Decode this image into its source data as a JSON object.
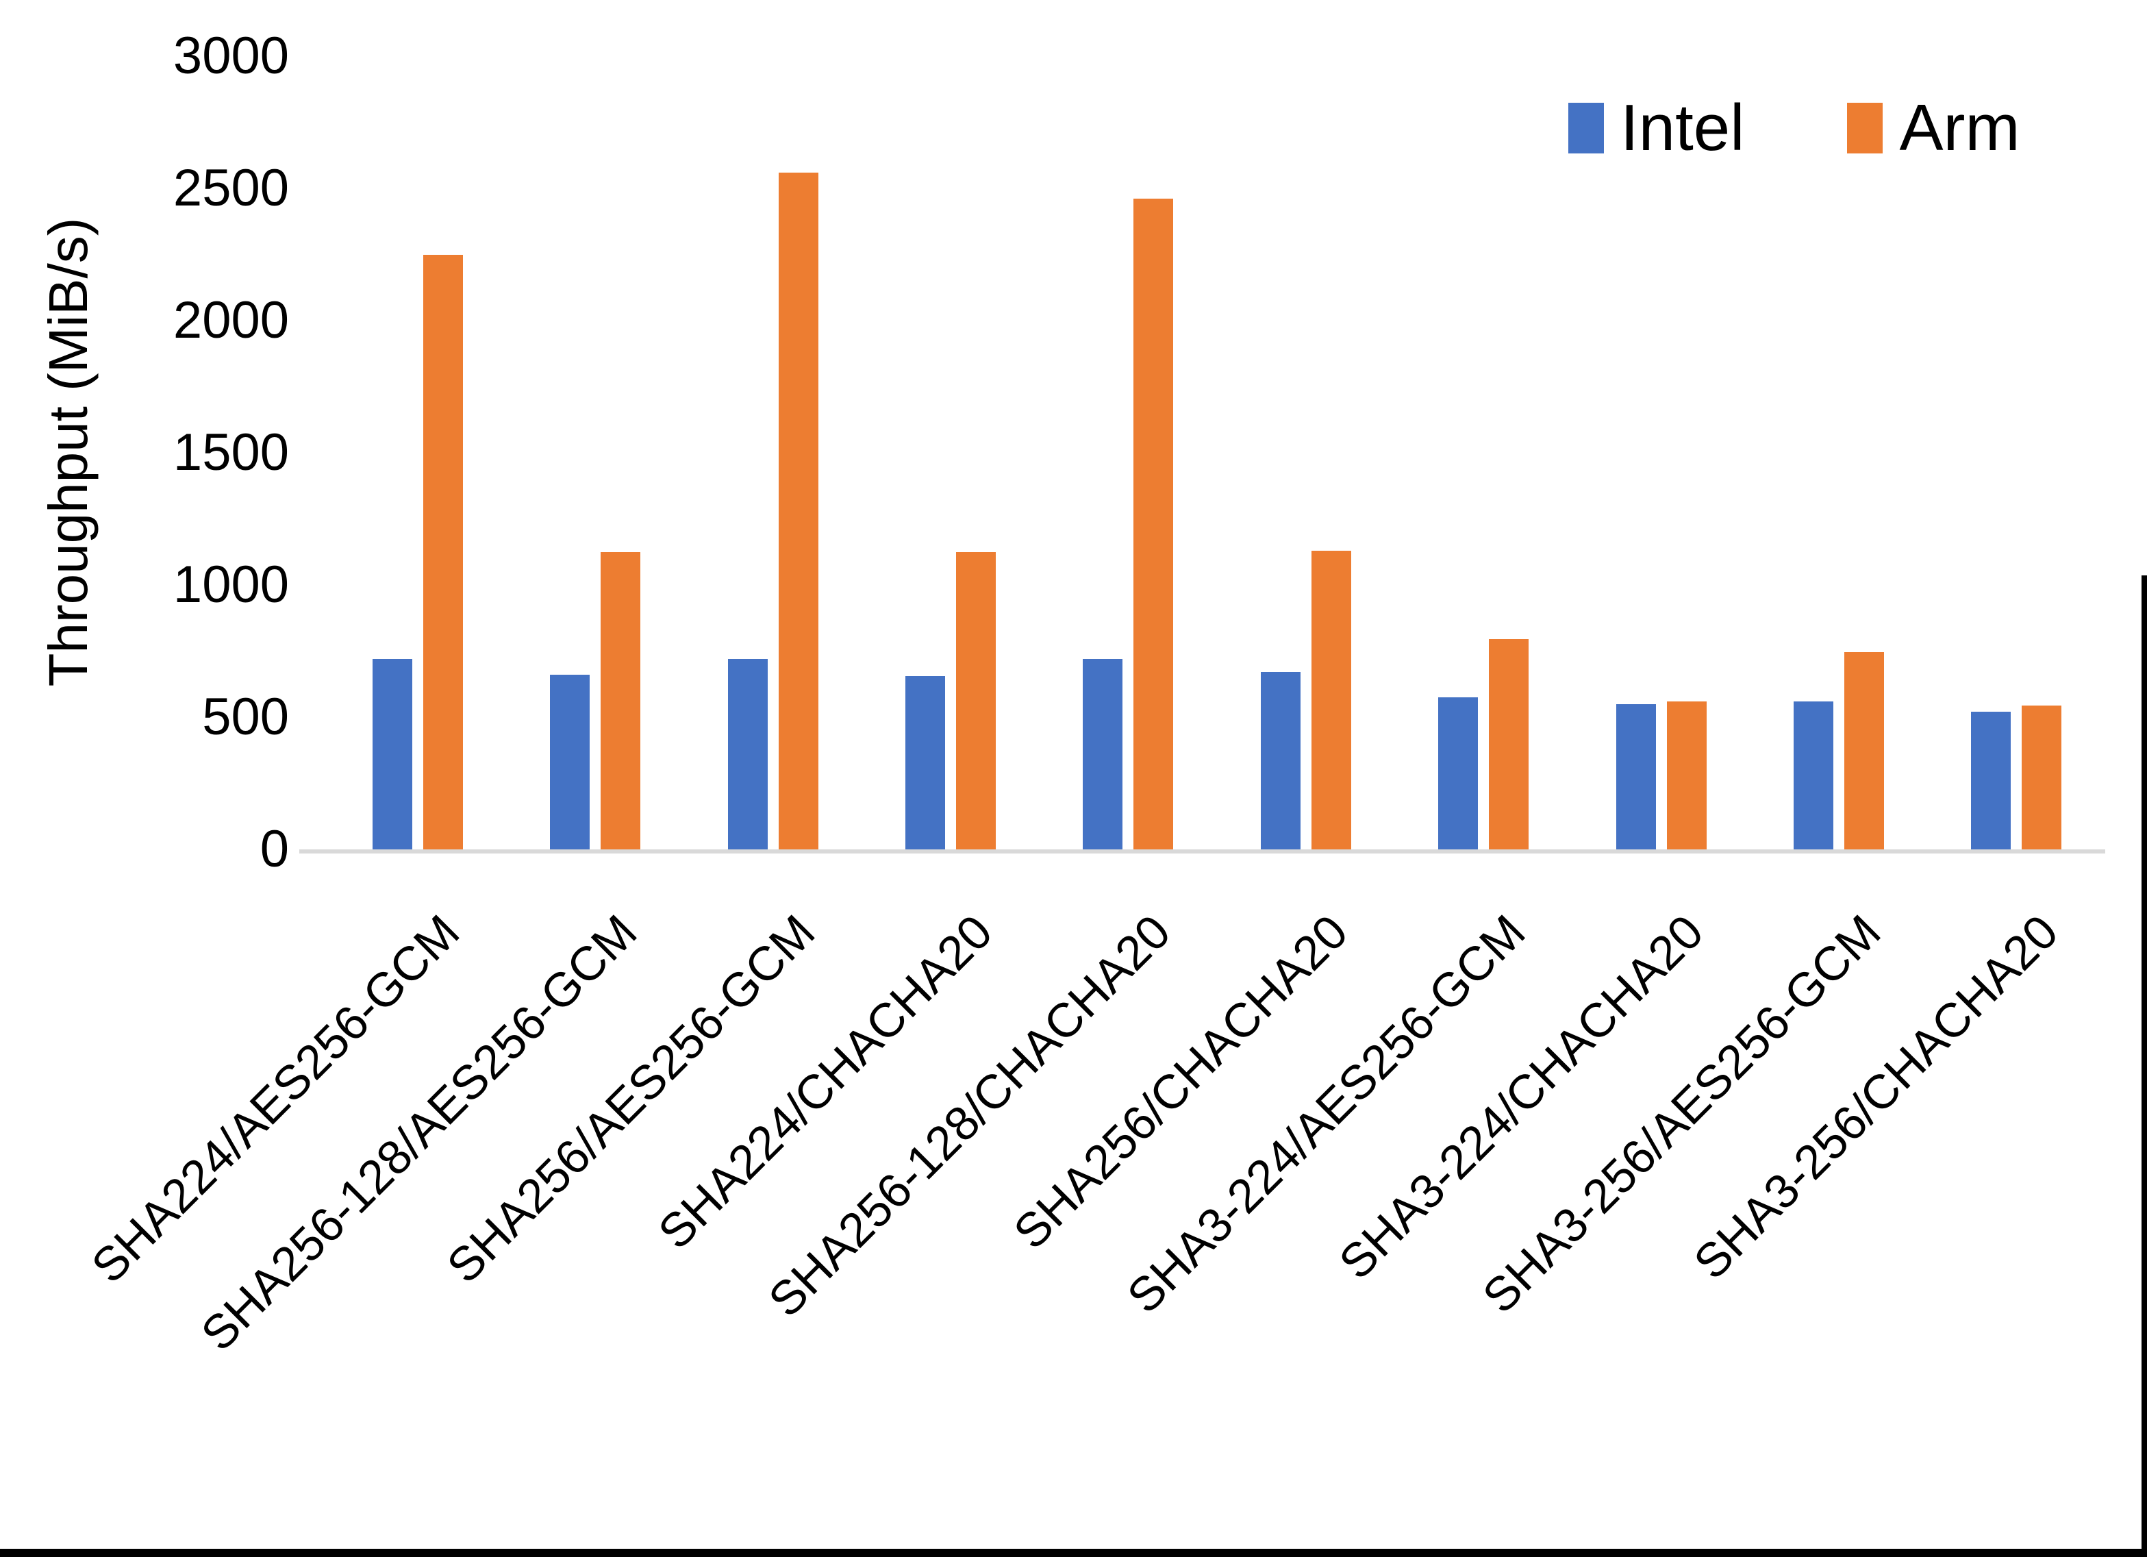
{
  "chart_data": {
    "type": "bar",
    "title": "",
    "ylabel": "Throughput (MiB/s)",
    "xlabel": "",
    "ylim": [
      0,
      3000
    ],
    "ytick_step": 500,
    "yticks": [
      0,
      500,
      1000,
      1500,
      2000,
      2500,
      3000
    ],
    "grid": false,
    "legend_position": "top-right",
    "categories": [
      "SHA224/AES256-GCM",
      "SHA256-128/AES256-GCM",
      "SHA256/AES256-GCM",
      "SHA224/CHACHA20",
      "SHA256-128/CHACHA20",
      "SHA256/CHACHA20",
      "SHA3-224/AES256-GCM",
      "SHA3-224/CHACHA20",
      "SHA3-256/AES256-GCM",
      "SHA3-256/CHACHA20"
    ],
    "series": [
      {
        "name": "Intel",
        "color": "#4472C4",
        "values": [
          720,
          660,
          720,
          655,
          720,
          670,
          575,
          550,
          560,
          520
        ]
      },
      {
        "name": "Arm",
        "color": "#ED7D31",
        "values": [
          2250,
          1125,
          2560,
          1125,
          2460,
          1130,
          795,
          560,
          745,
          545
        ]
      }
    ]
  },
  "colors": {
    "background": "#FFFFFF",
    "text": "#000000",
    "axis_line": "#D9D9D9",
    "frame": "#000000"
  }
}
